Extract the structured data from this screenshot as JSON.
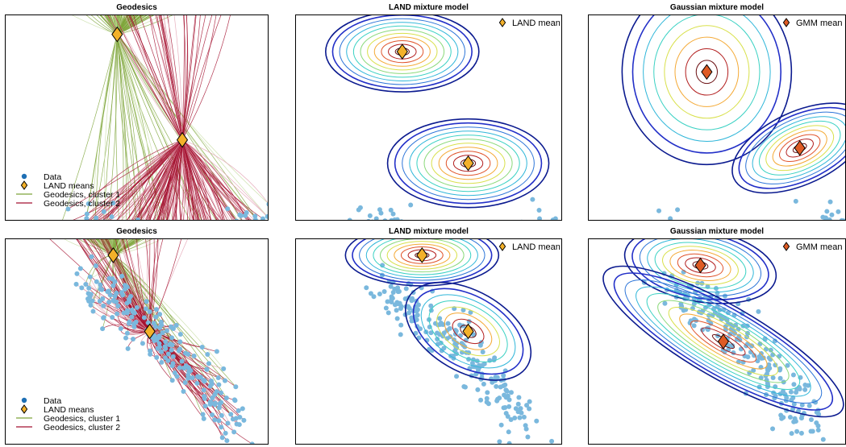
{
  "figure": {
    "colors": {
      "data": "#7ab8dd",
      "cluster1": "#7ea53a",
      "cluster1_light": "#c9dea7",
      "cluster2": "#a51230",
      "cluster2_light": "#e3a2b3",
      "land_mean": "#f3b12a",
      "gmm_mean": "#de5b24",
      "contours": [
        "#0b1a8f",
        "#2330c8",
        "#2c74d8",
        "#2fb6d9",
        "#3ad1c3",
        "#8ad97a",
        "#d8e04a",
        "#f4a935",
        "#e0542b",
        "#b21d1d",
        "#6b0f12"
      ]
    }
  },
  "chart_data": [
    {
      "type": "scatter",
      "title": "Geodesics",
      "legend": {
        "placement": "bottom-left",
        "entries": [
          {
            "label": "Data",
            "marker": "dot"
          },
          {
            "label": "LAND means",
            "marker": "diamond"
          },
          {
            "label": "Geodesics, cluster 1",
            "marker": "line-green"
          },
          {
            "label": "Geodesics, cluster 2",
            "marker": "line-red"
          }
        ]
      },
      "means": [
        {
          "x": -0.15,
          "y": 0.82
        },
        {
          "x": 0.35,
          "y": -0.22
        }
      ],
      "xlim": [
        -1,
        1
      ],
      "ylim": [
        -1,
        1
      ],
      "grid": false
    },
    {
      "type": "contour",
      "title": "LAND mixture model",
      "legend": {
        "placement": "top-right",
        "entries": [
          {
            "label": "LAND mean",
            "marker": "diamond"
          }
        ]
      },
      "means": [
        {
          "x": -0.2,
          "y": 0.65
        },
        {
          "x": 0.3,
          "y": -0.45
        }
      ],
      "xlim": [
        -1,
        1
      ],
      "ylim": [
        -1,
        1
      ],
      "grid": false
    },
    {
      "type": "contour",
      "title": "Gaussian mixture model",
      "legend": {
        "placement": "top-right",
        "entries": [
          {
            "label": "GMM mean",
            "marker": "diamond"
          }
        ]
      },
      "means": [
        {
          "x": -0.08,
          "y": 0.45
        },
        {
          "x": 0.65,
          "y": -0.3
        }
      ],
      "xlim": [
        -1,
        1
      ],
      "ylim": [
        -1,
        1
      ],
      "grid": false
    },
    {
      "type": "scatter",
      "title": "Geodesics",
      "legend": {
        "placement": "bottom-left",
        "entries": [
          {
            "label": "Data",
            "marker": "dot"
          },
          {
            "label": "LAND means",
            "marker": "diamond"
          },
          {
            "label": "Geodesics, cluster 1",
            "marker": "line-green"
          },
          {
            "label": "Geodesics, cluster 2",
            "marker": "line-red"
          }
        ]
      },
      "means": [
        {
          "x": -0.18,
          "y": 0.85
        },
        {
          "x": 0.1,
          "y": 0.1
        }
      ],
      "xlim": [
        -1,
        1
      ],
      "ylim": [
        -1,
        1
      ],
      "grid": false
    },
    {
      "type": "contour",
      "title": "LAND mixture model",
      "legend": {
        "placement": "top-right",
        "entries": [
          {
            "label": "LAND mean",
            "marker": "diamond"
          }
        ]
      },
      "means": [
        {
          "x": -0.05,
          "y": 0.85
        },
        {
          "x": 0.3,
          "y": 0.1
        }
      ],
      "xlim": [
        -1,
        1
      ],
      "ylim": [
        -1,
        1
      ],
      "grid": false
    },
    {
      "type": "contour",
      "title": "Gaussian mixture model",
      "legend": {
        "placement": "top-right",
        "entries": [
          {
            "label": "GMM mean",
            "marker": "diamond"
          }
        ]
      },
      "means": [
        {
          "x": -0.13,
          "y": 0.75
        },
        {
          "x": 0.05,
          "y": 0.0
        }
      ],
      "xlim": [
        -1,
        1
      ],
      "ylim": [
        -1,
        1
      ],
      "grid": false
    }
  ]
}
